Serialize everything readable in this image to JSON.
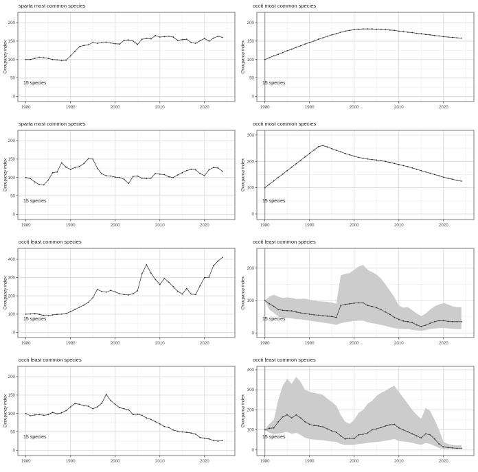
{
  "page": {
    "background": "#ffffff"
  },
  "colors": {
    "line": "#3c3c3c",
    "point": "#2f2f2f",
    "band": "#cccccc",
    "grid_major": "#dcdcdc",
    "grid_minor": "#f0f0f0",
    "panel_border": "#777777",
    "baseline_vline": "#8a8a8a",
    "tick_text": "#4d4d4d",
    "tick_mark": "#333333"
  },
  "chart_data": {
    "type": "line",
    "x_years": [
      1980,
      1981,
      1982,
      1983,
      1984,
      1985,
      1986,
      1987,
      1988,
      1989,
      1990,
      1991,
      1992,
      1993,
      1994,
      1995,
      1996,
      1997,
      1998,
      1999,
      2000,
      2001,
      2002,
      2003,
      2004,
      2005,
      2006,
      2007,
      2008,
      2009,
      2010,
      2011,
      2012,
      2013,
      2014,
      2015,
      2016,
      2017,
      2018,
      2019,
      2020,
      2021,
      2022,
      2023,
      2024
    ],
    "charts": [
      {
        "type": "line",
        "title": "sparta most common species",
        "ylabel": "Occupancy index",
        "annotation": "15 species",
        "yticks": [
          0,
          50,
          100,
          150,
          200
        ],
        "xticks": [
          1980,
          1990,
          2000,
          2010,
          2020
        ],
        "ylim": [
          -14,
          228
        ],
        "xlim": [
          1978.2,
          2026.8
        ],
        "grid": true,
        "values": [
          100,
          100,
          103,
          106,
          105,
          103,
          100,
          99,
          97,
          98,
          110,
          122,
          135,
          138,
          140,
          146,
          144,
          146,
          147,
          145,
          143,
          142,
          152,
          153,
          150,
          141,
          155,
          157,
          156,
          165,
          161,
          162,
          163,
          161,
          152,
          154,
          155,
          146,
          144,
          151,
          157,
          150,
          158,
          163,
          160
        ]
      },
      {
        "type": "line",
        "title": "occti most common species",
        "ylabel": "Occupancy index",
        "annotation": "15 species",
        "yticks": [
          0,
          50,
          100,
          150,
          200
        ],
        "xticks": [
          1980,
          1990,
          2000,
          2010,
          2020
        ],
        "ylim": [
          -14,
          228
        ],
        "xlim": [
          1978.2,
          2026.8
        ],
        "grid": true,
        "vline": 1980,
        "values": [
          100,
          105,
          110,
          114,
          119,
          124,
          128,
          133,
          137,
          142,
          146,
          150,
          155,
          159,
          163,
          167,
          170,
          174,
          177,
          179,
          181,
          182,
          183,
          183,
          183,
          182,
          182,
          181,
          180,
          179,
          177,
          176,
          174,
          173,
          171,
          170,
          168,
          167,
          165,
          164,
          162,
          161,
          160,
          159,
          158
        ]
      },
      {
        "type": "line",
        "title": "sparta most common species",
        "ylabel": "Occupancy index",
        "annotation": "15 species",
        "yticks": [
          0,
          50,
          100,
          150,
          200
        ],
        "xticks": [
          1980,
          1990,
          2000,
          2010,
          2020
        ],
        "ylim": [
          -14,
          228
        ],
        "xlim": [
          1978.2,
          2026.8
        ],
        "grid": true,
        "values": [
          100,
          97,
          88,
          81,
          80,
          93,
          113,
          115,
          140,
          128,
          122,
          127,
          130,
          138,
          151,
          150,
          125,
          110,
          105,
          104,
          101,
          100,
          95,
          84,
          103,
          104,
          98,
          97,
          98,
          111,
          109,
          108,
          102,
          100,
          107,
          113,
          119,
          122,
          121,
          111,
          105,
          121,
          127,
          126,
          117
        ]
      },
      {
        "type": "line",
        "title": "occti most common species",
        "ylabel": "Occupancy index",
        "annotation": "15 species",
        "yticks": [
          0,
          100,
          200,
          300
        ],
        "xticks": [
          1980,
          1990,
          2000,
          2010,
          2020
        ],
        "ylim": [
          -21,
          318
        ],
        "xlim": [
          1978.2,
          2026.8
        ],
        "grid": true,
        "vline": 1980,
        "values": [
          100,
          113,
          126,
          139,
          152,
          165,
          178,
          191,
          204,
          217,
          230,
          243,
          256,
          260,
          255,
          248,
          242,
          236,
          230,
          225,
          220,
          215,
          212,
          209,
          207,
          205,
          203,
          200,
          196,
          192,
          188,
          184,
          180,
          175,
          170,
          165,
          160,
          155,
          150,
          145,
          140,
          136,
          132,
          128,
          125
        ]
      },
      {
        "type": "line",
        "title": "occti least common species",
        "ylabel": "Occupancy index",
        "annotation": "15 species",
        "yticks": [
          0,
          100,
          200,
          300,
          400
        ],
        "xticks": [
          1980,
          1990,
          2000,
          2010,
          2020
        ],
        "ylim": [
          -28,
          460
        ],
        "xlim": [
          1978.2,
          2026.8
        ],
        "grid": true,
        "values": [
          100,
          101,
          104,
          99,
          93,
          92,
          96,
          99,
          100,
          103,
          113,
          126,
          138,
          150,
          165,
          190,
          235,
          224,
          220,
          230,
          222,
          212,
          207,
          205,
          212,
          228,
          322,
          370,
          325,
          290,
          262,
          295,
          275,
          250,
          225,
          210,
          240,
          210,
          207,
          255,
          300,
          302,
          365,
          390,
          410
        ]
      },
      {
        "type": "line",
        "title": "occti least common species",
        "ylabel": "Occupancy index",
        "annotation": "15 species",
        "yticks": [
          0,
          100,
          200
        ],
        "xticks": [
          1980,
          1990,
          2000,
          2010,
          2020
        ],
        "ylim": [
          -14,
          261
        ],
        "xlim": [
          1978.2,
          2026.8
        ],
        "grid": true,
        "vline": 1980,
        "values": [
          100,
          90,
          82,
          72,
          70,
          69,
          68,
          65,
          62,
          60,
          58,
          56,
          55,
          53,
          52,
          51,
          48,
          85,
          88,
          90,
          92,
          93,
          93,
          85,
          82,
          78,
          72,
          65,
          57,
          48,
          42,
          37,
          35,
          32,
          25,
          20,
          24,
          30,
          35,
          38,
          38,
          36,
          35,
          35,
          35
        ],
        "band": {
          "upper": [
            100,
            112,
            118,
            112,
            108,
            110,
            108,
            105,
            105,
            106,
            103,
            100,
            98,
            97,
            96,
            94,
            90,
            178,
            182,
            185,
            195,
            205,
            210,
            195,
            188,
            180,
            168,
            150,
            130,
            110,
            85,
            78,
            80,
            70,
            60,
            52,
            60,
            72,
            82,
            88,
            92,
            88,
            82,
            80,
            80
          ],
          "lower": [
            100,
            72,
            62,
            52,
            48,
            46,
            45,
            43,
            42,
            40,
            38,
            36,
            34,
            32,
            30,
            28,
            25,
            30,
            33,
            35,
            37,
            38,
            38,
            33,
            30,
            28,
            25,
            22,
            18,
            15,
            13,
            12,
            12,
            10,
            8,
            7,
            9,
            12,
            14,
            15,
            15,
            14,
            13,
            12,
            12
          ]
        }
      },
      {
        "type": "line",
        "title": "occti least common species",
        "ylabel": "Occupancy index",
        "annotation": "15 species",
        "yticks": [
          0,
          50,
          100,
          150,
          200
        ],
        "xticks": [
          1980,
          1990,
          2000,
          2010,
          2020
        ],
        "ylim": [
          -14,
          228
        ],
        "xlim": [
          1978.2,
          2026.8
        ],
        "grid": true,
        "values": [
          100,
          94,
          96,
          97,
          95,
          97,
          103,
          99,
          102,
          108,
          118,
          127,
          125,
          121,
          120,
          113,
          118,
          128,
          152,
          135,
          125,
          116,
          113,
          110,
          97,
          98,
          95,
          88,
          84,
          78,
          72,
          65,
          62,
          55,
          52,
          50,
          49,
          47,
          44,
          35,
          33,
          31,
          27,
          25,
          27
        ]
      },
      {
        "type": "line",
        "title": "occti least common species",
        "ylabel": "Occupancy index",
        "annotation": "15 species",
        "yticks": [
          0,
          100,
          200,
          300,
          400
        ],
        "xticks": [
          1980,
          1990,
          2000,
          2010,
          2020
        ],
        "ylim": [
          -28,
          417
        ],
        "xlim": [
          1978.2,
          2026.8
        ],
        "grid": true,
        "vline": 1980,
        "values": [
          100,
          108,
          110,
          140,
          165,
          175,
          160,
          175,
          160,
          140,
          128,
          122,
          120,
          115,
          105,
          95,
          88,
          70,
          55,
          58,
          57,
          75,
          78,
          85,
          100,
          105,
          112,
          120,
          125,
          128,
          110,
          100,
          90,
          80,
          70,
          60,
          80,
          75,
          55,
          30,
          15,
          12,
          10,
          8,
          8
        ],
        "band": {
          "upper": [
            100,
            130,
            150,
            250,
            320,
            355,
            330,
            365,
            340,
            300,
            290,
            285,
            280,
            275,
            255,
            240,
            220,
            175,
            140,
            130,
            150,
            185,
            200,
            230,
            245,
            270,
            285,
            295,
            310,
            320,
            290,
            260,
            230,
            200,
            175,
            155,
            210,
            195,
            150,
            100,
            40,
            30,
            25,
            22,
            25
          ],
          "lower": [
            100,
            85,
            80,
            82,
            85,
            90,
            80,
            85,
            75,
            60,
            55,
            52,
            50,
            48,
            45,
            42,
            40,
            30,
            25,
            25,
            25,
            30,
            32,
            35,
            38,
            40,
            42,
            46,
            50,
            55,
            45,
            42,
            40,
            35,
            30,
            25,
            35,
            30,
            20,
            10,
            5,
            5,
            5,
            5,
            5
          ]
        }
      }
    ]
  }
}
